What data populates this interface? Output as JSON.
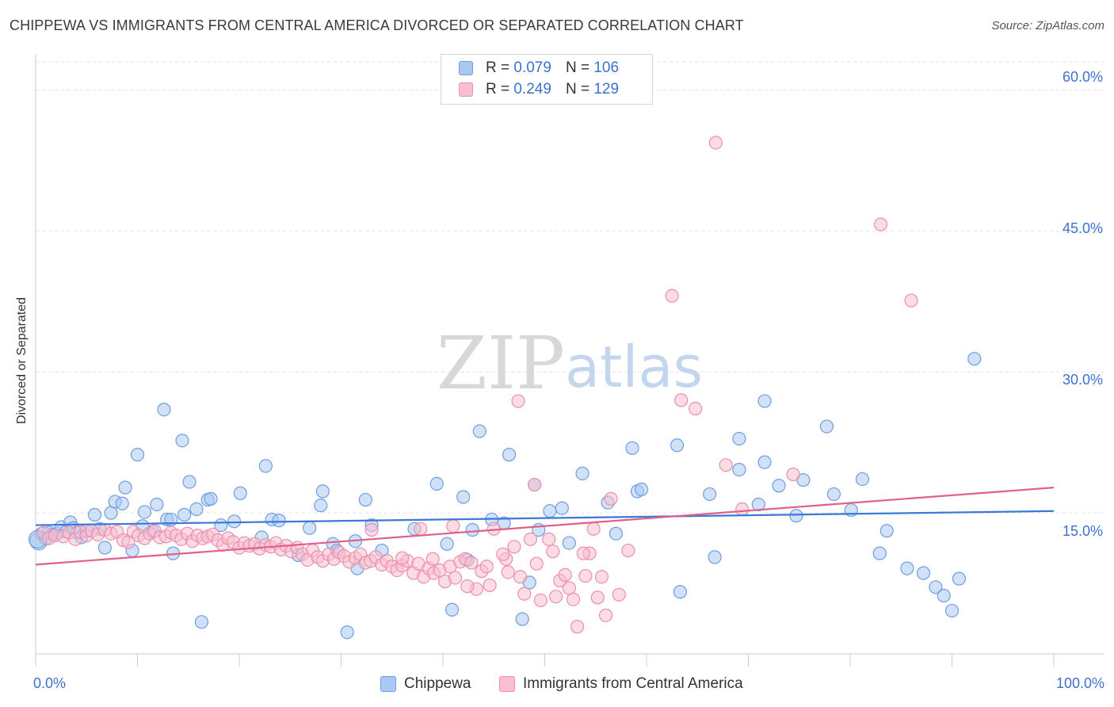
{
  "title": "CHIPPEWA VS IMMIGRANTS FROM CENTRAL AMERICA DIVORCED OR SEPARATED CORRELATION CHART",
  "source": "Source: ZipAtlas.com",
  "watermark": {
    "zip": "ZIP",
    "atlas": "atlas"
  },
  "legend_top": {
    "rows": [
      {
        "r_label": "R =",
        "r_value": "0.079",
        "n_label": "N =",
        "n_value": "106",
        "fill": "#aac8f2",
        "stroke": "#6f9ee0"
      },
      {
        "r_label": "R =",
        "r_value": "0.249",
        "n_label": "N =",
        "n_value": "129",
        "fill": "#f8bfd0",
        "stroke": "#ee8eab"
      }
    ]
  },
  "legend_bottom": [
    {
      "label": "Chippewa",
      "fill": "#aac8f2",
      "stroke": "#6f9ee0"
    },
    {
      "label": "Immigrants from Central America",
      "fill": "#f8bfd0",
      "stroke": "#ee8eab"
    }
  ],
  "chart_data": {
    "type": "scatter",
    "title": "CHIPPEWA VS IMMIGRANTS FROM CENTRAL AMERICA DIVORCED OR SEPARATED CORRELATION CHART",
    "xlabel": "",
    "ylabel": "Divorced or Separated",
    "xlim": [
      0,
      100
    ],
    "ylim": [
      0,
      63
    ],
    "x_tick_labels": [
      "0.0%",
      "100.0%"
    ],
    "y_ticks": [
      15,
      30,
      45,
      60
    ],
    "y_tick_labels": [
      "15.0%",
      "30.0%",
      "45.0%",
      "60.0%"
    ],
    "grid": true,
    "series": [
      {
        "name": "Chippewa",
        "color": "#3b78d8",
        "fill": "#aac8f2",
        "stroke": "#6f9ee0",
        "trend": {
          "x": [
            0,
            100
          ],
          "y": [
            13.7,
            15.2
          ]
        },
        "points": [
          [
            0.3,
            12.0
          ],
          [
            0.6,
            12.8
          ],
          [
            1.0,
            12.3
          ],
          [
            1.3,
            12.9
          ],
          [
            1.7,
            12.7
          ],
          [
            2.1,
            12.8
          ],
          [
            2.5,
            13.5
          ],
          [
            3.0,
            13.0
          ],
          [
            3.4,
            14.0
          ],
          [
            3.7,
            13.4
          ],
          [
            4.1,
            12.9
          ],
          [
            4.5,
            12.4
          ],
          [
            5.0,
            13.1
          ],
          [
            5.8,
            14.8
          ],
          [
            6.3,
            13.3
          ],
          [
            6.8,
            11.3
          ],
          [
            7.4,
            15.0
          ],
          [
            7.8,
            16.2
          ],
          [
            8.5,
            16.0
          ],
          [
            8.8,
            17.7
          ],
          [
            9.5,
            11.0
          ],
          [
            10.0,
            21.2
          ],
          [
            10.5,
            13.6
          ],
          [
            10.7,
            15.1
          ],
          [
            11.5,
            13.0
          ],
          [
            11.9,
            15.9
          ],
          [
            12.6,
            26.0
          ],
          [
            12.9,
            14.3
          ],
          [
            13.3,
            14.3
          ],
          [
            13.5,
            10.7
          ],
          [
            14.4,
            22.7
          ],
          [
            14.6,
            14.8
          ],
          [
            15.1,
            18.3
          ],
          [
            15.8,
            15.4
          ],
          [
            16.3,
            3.4
          ],
          [
            16.9,
            16.4
          ],
          [
            17.2,
            16.5
          ],
          [
            18.2,
            13.7
          ],
          [
            19.5,
            14.1
          ],
          [
            20.1,
            17.1
          ],
          [
            22.2,
            12.4
          ],
          [
            22.6,
            20.0
          ],
          [
            23.2,
            14.3
          ],
          [
            23.9,
            14.2
          ],
          [
            25.8,
            10.5
          ],
          [
            26.9,
            13.4
          ],
          [
            28.0,
            15.8
          ],
          [
            28.2,
            17.3
          ],
          [
            29.2,
            11.7
          ],
          [
            29.6,
            11.0
          ],
          [
            30.6,
            2.3
          ],
          [
            31.4,
            12.0
          ],
          [
            31.6,
            9.1
          ],
          [
            32.4,
            16.4
          ],
          [
            33.0,
            13.7
          ],
          [
            34.0,
            11.0
          ],
          [
            37.2,
            13.3
          ],
          [
            39.4,
            18.1
          ],
          [
            40.4,
            11.7
          ],
          [
            40.9,
            4.7
          ],
          [
            42.0,
            16.7
          ],
          [
            42.4,
            10.0
          ],
          [
            42.9,
            13.2
          ],
          [
            43.6,
            23.7
          ],
          [
            44.8,
            14.3
          ],
          [
            46.0,
            13.9
          ],
          [
            46.5,
            21.2
          ],
          [
            47.8,
            3.7
          ],
          [
            48.5,
            7.6
          ],
          [
            49.0,
            18.0
          ],
          [
            49.4,
            13.2
          ],
          [
            50.5,
            15.2
          ],
          [
            51.7,
            15.5
          ],
          [
            52.4,
            11.8
          ],
          [
            53.7,
            19.2
          ],
          [
            56.2,
            16.1
          ],
          [
            57.0,
            12.8
          ],
          [
            58.6,
            21.9
          ],
          [
            59.1,
            17.3
          ],
          [
            59.5,
            17.5
          ],
          [
            63.0,
            22.2
          ],
          [
            63.3,
            6.6
          ],
          [
            66.2,
            17.0
          ],
          [
            66.7,
            10.3
          ],
          [
            69.1,
            22.9
          ],
          [
            69.1,
            19.6
          ],
          [
            71.0,
            15.9
          ],
          [
            71.6,
            26.9
          ],
          [
            71.6,
            20.4
          ],
          [
            73.0,
            17.9
          ],
          [
            74.7,
            14.7
          ],
          [
            75.4,
            18.5
          ],
          [
            77.7,
            24.2
          ],
          [
            78.4,
            17.0
          ],
          [
            80.1,
            15.3
          ],
          [
            81.2,
            18.6
          ],
          [
            82.9,
            10.7
          ],
          [
            83.6,
            13.1
          ],
          [
            85.6,
            9.1
          ],
          [
            87.2,
            8.6
          ],
          [
            88.4,
            7.1
          ],
          [
            89.2,
            6.2
          ],
          [
            90.0,
            4.6
          ],
          [
            90.7,
            8.0
          ],
          [
            92.2,
            31.4
          ],
          [
            0.2,
            12.2
          ]
        ]
      },
      {
        "name": "Immigrants from Central America",
        "color": "#e0608a",
        "fill": "#f8bfd0",
        "stroke": "#ee8eab",
        "trend": {
          "x": [
            0,
            100
          ],
          "y": [
            9.5,
            17.7
          ]
        },
        "points": [
          [
            0.8,
            12.9
          ],
          [
            1.3,
            12.3
          ],
          [
            1.9,
            12.6
          ],
          [
            2.7,
            12.5
          ],
          [
            3.3,
            12.9
          ],
          [
            3.9,
            12.2
          ],
          [
            4.4,
            13.0
          ],
          [
            5.0,
            12.6
          ],
          [
            5.5,
            13.1
          ],
          [
            6.1,
            12.7
          ],
          [
            6.8,
            13.2
          ],
          [
            7.4,
            12.8
          ],
          [
            8.0,
            13.0
          ],
          [
            8.6,
            12.1
          ],
          [
            9.1,
            11.9
          ],
          [
            9.6,
            13.0
          ],
          [
            10.1,
            12.6
          ],
          [
            10.7,
            12.3
          ],
          [
            11.2,
            12.8
          ],
          [
            11.7,
            13.1
          ],
          [
            12.2,
            12.4
          ],
          [
            12.8,
            12.5
          ],
          [
            13.3,
            12.9
          ],
          [
            13.8,
            12.6
          ],
          [
            14.3,
            12.2
          ],
          [
            14.9,
            12.8
          ],
          [
            15.4,
            12.0
          ],
          [
            15.9,
            12.6
          ],
          [
            16.4,
            12.3
          ],
          [
            16.9,
            12.5
          ],
          [
            17.4,
            12.7
          ],
          [
            17.9,
            12.1
          ],
          [
            18.4,
            11.6
          ],
          [
            18.9,
            12.3
          ],
          [
            19.4,
            11.9
          ],
          [
            20.0,
            11.3
          ],
          [
            20.5,
            11.8
          ],
          [
            21.0,
            11.5
          ],
          [
            21.5,
            11.7
          ],
          [
            22.0,
            11.2
          ],
          [
            22.6,
            11.6
          ],
          [
            23.1,
            11.4
          ],
          [
            23.6,
            11.8
          ],
          [
            24.1,
            11.1
          ],
          [
            24.6,
            11.5
          ],
          [
            25.1,
            10.9
          ],
          [
            25.7,
            11.3
          ],
          [
            26.2,
            10.6
          ],
          [
            26.7,
            10.0
          ],
          [
            27.2,
            11.0
          ],
          [
            27.7,
            10.3
          ],
          [
            28.2,
            9.9
          ],
          [
            28.8,
            10.6
          ],
          [
            29.3,
            10.1
          ],
          [
            29.8,
            10.8
          ],
          [
            30.3,
            10.4
          ],
          [
            30.8,
            9.8
          ],
          [
            31.4,
            10.2
          ],
          [
            31.9,
            10.6
          ],
          [
            32.4,
            9.7
          ],
          [
            32.9,
            9.9
          ],
          [
            33.4,
            10.3
          ],
          [
            34.0,
            9.5
          ],
          [
            34.5,
            9.9
          ],
          [
            35.0,
            9.3
          ],
          [
            35.5,
            8.9
          ],
          [
            36.0,
            9.4
          ],
          [
            36.5,
            9.9
          ],
          [
            37.1,
            8.6
          ],
          [
            37.6,
            9.6
          ],
          [
            38.1,
            8.2
          ],
          [
            38.6,
            9.1
          ],
          [
            39.1,
            8.6
          ],
          [
            39.7,
            8.9
          ],
          [
            40.2,
            7.7
          ],
          [
            40.7,
            9.3
          ],
          [
            41.2,
            8.1
          ],
          [
            41.7,
            9.8
          ],
          [
            42.2,
            10.1
          ],
          [
            42.8,
            9.7
          ],
          [
            43.3,
            6.9
          ],
          [
            43.8,
            8.8
          ],
          [
            44.3,
            9.3
          ],
          [
            47.4,
            26.9
          ],
          [
            49.0,
            18.0
          ],
          [
            45.0,
            13.3
          ],
          [
            47.0,
            11.4
          ],
          [
            48.6,
            12.2
          ],
          [
            46.2,
            10.1
          ],
          [
            47.6,
            8.2
          ],
          [
            48.0,
            6.4
          ],
          [
            49.2,
            9.6
          ],
          [
            50.4,
            12.2
          ],
          [
            50.8,
            10.9
          ],
          [
            51.1,
            6.1
          ],
          [
            51.5,
            7.8
          ],
          [
            52.4,
            7.0
          ],
          [
            52.8,
            5.8
          ],
          [
            53.2,
            2.9
          ],
          [
            54.0,
            8.3
          ],
          [
            54.4,
            10.7
          ],
          [
            54.8,
            13.3
          ],
          [
            55.2,
            6.0
          ],
          [
            55.6,
            8.2
          ],
          [
            56.0,
            4.1
          ],
          [
            56.5,
            16.5
          ],
          [
            57.3,
            6.3
          ],
          [
            58.2,
            11.0
          ],
          [
            62.5,
            38.1
          ],
          [
            63.4,
            27.0
          ],
          [
            64.8,
            26.1
          ],
          [
            66.8,
            54.4
          ],
          [
            67.8,
            20.1
          ],
          [
            69.4,
            15.4
          ],
          [
            74.4,
            19.1
          ],
          [
            83.0,
            45.7
          ],
          [
            86.0,
            37.6
          ],
          [
            37.8,
            13.3
          ],
          [
            41.0,
            13.6
          ],
          [
            44.6,
            7.3
          ],
          [
            45.9,
            10.6
          ],
          [
            49.6,
            5.7
          ],
          [
            52.0,
            8.4
          ],
          [
            53.8,
            10.7
          ],
          [
            33.0,
            13.2
          ],
          [
            36.0,
            10.2
          ],
          [
            39.0,
            10.1
          ],
          [
            42.4,
            7.2
          ],
          [
            46.4,
            8.7
          ]
        ]
      }
    ]
  }
}
